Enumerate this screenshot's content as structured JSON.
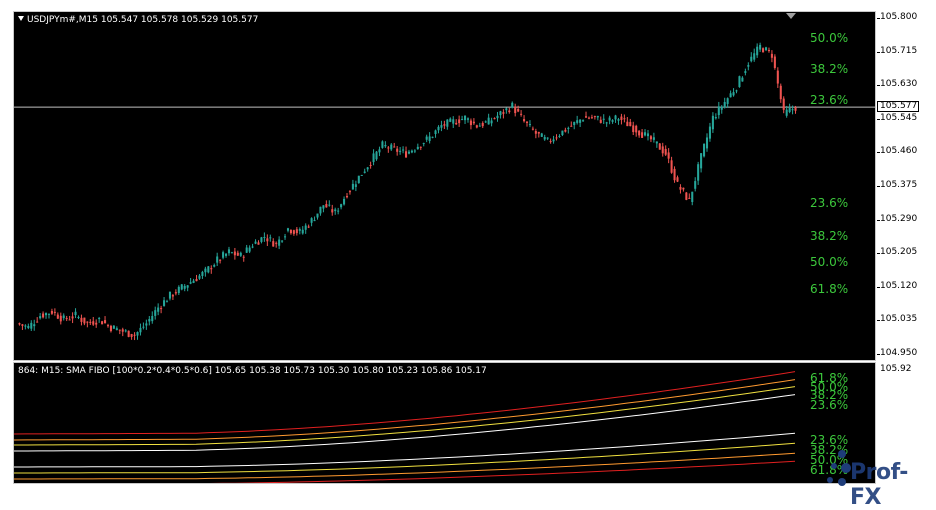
{
  "main_chart": {
    "symbol_header": "USDJPYm#,M15  105.547 105.578 105.529 105.577",
    "current_price": "105.577",
    "price_axis": [
      "105.800",
      "105.715",
      "105.630",
      "105.545",
      "105.460",
      "105.375",
      "105.290",
      "105.205",
      "105.120",
      "105.035",
      "104.950"
    ],
    "fibo_upper": [
      "50.0%",
      "38.2%",
      "23.6%"
    ],
    "fibo_lower": [
      "23.6%",
      "38.2%",
      "50.0%",
      "61.8%"
    ],
    "colors": {
      "bull": "#26a69a",
      "bear": "#ef5350",
      "fibo_text": "#3cc83c",
      "price_line": "#c0c0c0"
    }
  },
  "sub_chart": {
    "header": "864: M15: SMA FIBO [100*0.2*0.4*0.5*0.6]  105.65 105.38 105.73 105.30 105.80 105.23 105.86 105.17",
    "axis_label": "105.92",
    "fibo_upper": [
      "61.8%",
      "50.0%",
      "38.2%",
      "23.6%"
    ],
    "fibo_lower": [
      "23.6%",
      "38.2%",
      "50.0%",
      "61.8%"
    ],
    "colors": {
      "red": "#e02020",
      "orange": "#ff9a30",
      "yellow": "#f0e040",
      "white": "#ffffff"
    }
  },
  "watermark": {
    "text": "Prof-FX"
  },
  "chart_data": {
    "type": "line",
    "title": "USDJPYm#,M15",
    "xlabel": "",
    "ylabel": "",
    "ylim": [
      104.95,
      105.8
    ],
    "series": [
      {
        "values": [
          105.03,
          105.02,
          105.05,
          105.06,
          105.04,
          105.05,
          105.03,
          105.04,
          105.02,
          105.01,
          105.0,
          105.03,
          105.07,
          105.1,
          105.12,
          105.14,
          105.16,
          105.19,
          105.21,
          105.2,
          105.23,
          105.25,
          105.23,
          105.27,
          105.26,
          105.29,
          105.33,
          105.31,
          105.36,
          105.4,
          105.44,
          105.48,
          105.47,
          105.46,
          105.48,
          105.5,
          105.53,
          105.54,
          105.55,
          105.53,
          105.54,
          105.56,
          105.58,
          105.54,
          105.51,
          105.49,
          105.51,
          105.53,
          105.55,
          105.55,
          105.54,
          105.55,
          105.53,
          105.51,
          105.49,
          105.46,
          105.38,
          105.34,
          105.45,
          105.55,
          105.59,
          105.63,
          105.69,
          105.73,
          105.71,
          105.56,
          105.577
        ]
      }
    ]
  }
}
